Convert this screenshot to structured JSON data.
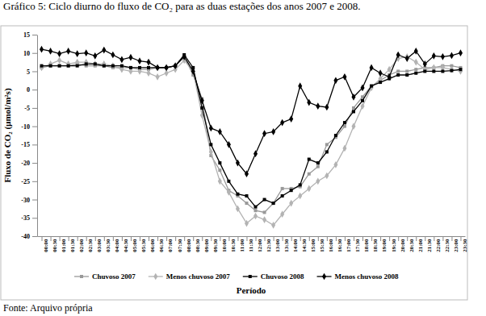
{
  "chart_data": {
    "type": "line",
    "title": "Gráfico 5: Ciclo diurno do fluxo de CO₂ para as duas estações dos anos 2007 e 2008.",
    "source": "Fonte: Arquivo própria",
    "x_label": "Período",
    "y_label": "Fluxo de CO₂ (µmol/m²s)",
    "categories": [
      "00:00",
      "00:30",
      "01:00",
      "01:30",
      "02:00",
      "02:30",
      "03:00",
      "03:30",
      "04:00",
      "04:30",
      "05:00",
      "05:30",
      "06:00",
      "06:30",
      "07:00",
      "07:30",
      "08:00",
      "08:30",
      "09:00",
      "09:30",
      "10:00",
      "10:30",
      "11:00",
      "11:30",
      "12:00",
      "12:30",
      "13:00",
      "13:30",
      "14:00",
      "14:30",
      "15:00",
      "15:30",
      "16:00",
      "16:30",
      "17:00",
      "17:30",
      "18:00",
      "18:30",
      "19:00",
      "19:30",
      "20:00",
      "20:30",
      "21:00",
      "21:30",
      "22:00",
      "22:30",
      "23:00",
      "23:30"
    ],
    "series": [
      {
        "name": "Chuvoso 2007",
        "color": "#999999",
        "marker": "square",
        "values": [
          6,
          6.5,
          6.5,
          6.5,
          7,
          6.5,
          6.5,
          6.5,
          6,
          6,
          6,
          5.5,
          5.5,
          6,
          6,
          6.5,
          9,
          4,
          -2.5,
          -18,
          -22,
          -27.5,
          -29,
          -31,
          -33,
          -33.5,
          -31,
          -27,
          -27,
          -26.5,
          -23,
          -21,
          -15,
          -13,
          -10,
          -5,
          -2,
          1,
          2.5,
          4,
          5,
          5,
          5.5,
          6,
          6,
          6.5,
          6.5,
          6
        ]
      },
      {
        "name": "Menos chuvoso 2007",
        "color": "#b3b3b3",
        "marker": "diamond",
        "values": [
          6,
          7,
          8,
          7,
          7.5,
          7.5,
          7,
          7,
          6.5,
          5.5,
          5,
          5,
          4.5,
          3.5,
          4.5,
          5.5,
          8,
          5,
          -7,
          -17,
          -25,
          -28,
          -32.5,
          -36.5,
          -34.5,
          -35.5,
          -37,
          -34,
          -31,
          -29,
          -27,
          -25,
          -23.5,
          -20.5,
          -16,
          -10,
          -4.5,
          0.5,
          3,
          5.5,
          8.5,
          9,
          7.5,
          5.5,
          6,
          6,
          5.5,
          5
        ]
      },
      {
        "name": "Chuvoso 2008",
        "color": "#000000",
        "marker": "square",
        "values": [
          6.5,
          6.5,
          6.5,
          6.5,
          6.5,
          7,
          7,
          6.5,
          6.5,
          6.5,
          6,
          6,
          6,
          6,
          6,
          6.5,
          9.5,
          6,
          -5,
          -15,
          -20,
          -25,
          -28.5,
          -29,
          -32,
          -30,
          -31,
          -29,
          -27.5,
          -26,
          -19,
          -20,
          -17,
          -12.5,
          -9,
          -6,
          -3,
          1,
          2,
          3,
          4,
          4,
          4.5,
          5,
          5,
          5,
          5.2,
          5.5
        ]
      },
      {
        "name": "Menos chuvoso 2008",
        "color": "#000000",
        "marker": "diamond",
        "values": [
          11,
          10.5,
          9.8,
          10.5,
          9.8,
          10,
          9.2,
          10.8,
          9.5,
          8.2,
          8.8,
          7.8,
          7.5,
          6,
          6,
          6.5,
          9,
          5,
          -3,
          -10.5,
          -11.5,
          -15,
          -20,
          -23,
          -17.5,
          -12,
          -11.5,
          -9,
          -8,
          1,
          -3.5,
          -4.5,
          -4.8,
          2.5,
          3.5,
          -2,
          0.5,
          6,
          4.5,
          3.5,
          9.5,
          8.5,
          10.5,
          7,
          9.2,
          9,
          9.3,
          10
        ]
      }
    ],
    "ylim": [
      -40,
      15
    ],
    "yticks": [
      -40,
      -35,
      -30,
      -25,
      -20,
      -15,
      -10,
      -5,
      0,
      5,
      10,
      15
    ],
    "grid": false,
    "legend": "bottom"
  }
}
